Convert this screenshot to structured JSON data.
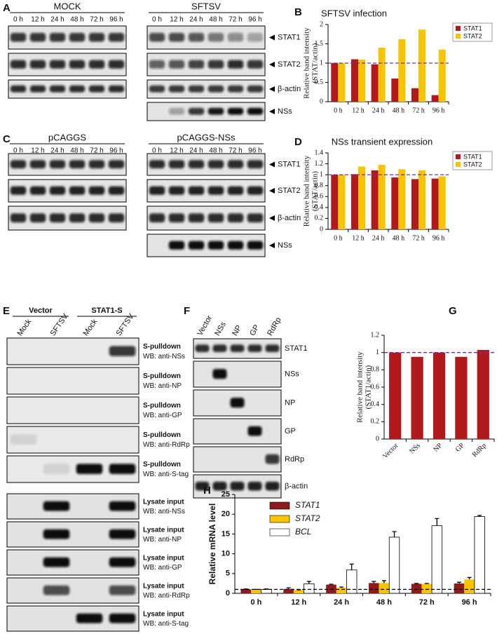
{
  "panels": {
    "A": {
      "label": "A",
      "groups": [
        {
          "title": "MOCK",
          "lanes": [
            "0 h",
            "12 h",
            "24 h",
            "48 h",
            "72 h",
            "96 h"
          ]
        },
        {
          "title": "SFTSV",
          "lanes": [
            "0 h",
            "12 h",
            "24 h",
            "48 h",
            "72 h",
            "96 h"
          ]
        }
      ],
      "rows": [
        "STAT1",
        "STAT2",
        "β-actin",
        "NSs"
      ]
    },
    "C": {
      "label": "C",
      "groups": [
        {
          "title": "pCAGGS",
          "lanes": [
            "0 h",
            "12 h",
            "24 h",
            "48 h",
            "72 h",
            "96 h"
          ]
        },
        {
          "title": "pCAGGS-NSs",
          "lanes": [
            "0 h",
            "12 h",
            "24 h",
            "48 h",
            "72 h",
            "96 h"
          ]
        }
      ],
      "rows": [
        "STAT1",
        "STAT2",
        "β-actin",
        "NSs"
      ]
    },
    "E": {
      "label": "E",
      "groups": [
        "Vector",
        "STAT1-S"
      ],
      "lanes": [
        "Mock",
        "SFTSV",
        "Mock",
        "SFTSV"
      ],
      "rows": [
        {
          "title": "S-pulldown",
          "probe": "WB: anti-NSs"
        },
        {
          "title": "S-pulldown",
          "probe": "WB: anti-NP"
        },
        {
          "title": "S-pulldown",
          "probe": "WB: anti-GP"
        },
        {
          "title": "S-pulldown",
          "probe": "WB: anti-RdRp"
        },
        {
          "title": "S-pulldown",
          "probe": "WB: anti-S-tag"
        },
        {
          "title": "Lysate input",
          "probe": "WB: anti-NSs"
        },
        {
          "title": "Lysate input",
          "probe": "WB: anti-NP"
        },
        {
          "title": "Lysate input",
          "probe": "WB: anti-GP"
        },
        {
          "title": "Lysate input",
          "probe": "WB: anti-RdRp"
        },
        {
          "title": "Lysate input",
          "probe": "WB: anti-S-tag"
        }
      ]
    },
    "F": {
      "label": "F",
      "lanes": [
        "Vector",
        "NSs",
        "NP",
        "GP",
        "RdRp"
      ],
      "rows": [
        "STAT1",
        "NSs",
        "NP",
        "GP",
        "RdRp",
        "β-actin"
      ]
    }
  },
  "chart_data": [
    {
      "type": "bar",
      "panel_label": "B",
      "title": "SFTSV infection",
      "y_label": [
        "Relative band intensity",
        "(STAT/actin)"
      ],
      "categories": [
        "0 h",
        "12 h",
        "24 h",
        "48 h",
        "72 h",
        "96 h"
      ],
      "series": [
        {
          "name": "STAT1",
          "color": "#b2191c",
          "values": [
            1,
            1.1,
            0.97,
            0.6,
            0.35,
            0.17
          ]
        },
        {
          "name": "STAT2",
          "color": "#f6c500",
          "values": [
            1,
            1.09,
            1.4,
            1.62,
            1.87,
            1.35
          ]
        }
      ],
      "ylim": [
        0,
        2
      ],
      "yticks": [
        0,
        0.5,
        1,
        1.5,
        2
      ],
      "reference_line": 1,
      "reference_color": "#7030a0",
      "legend": "top-right"
    },
    {
      "type": "bar",
      "panel_label": "D",
      "title": "NSs transient expression",
      "y_label": [
        "Relative band intensity",
        "(STAT/actin)"
      ],
      "categories": [
        "0 h",
        "12 h",
        "24 h",
        "48 h",
        "72 h",
        "96 h"
      ],
      "series": [
        {
          "name": "STAT1",
          "color": "#b2191c",
          "values": [
            1,
            1.01,
            1.08,
            0.95,
            0.92,
            0.93
          ]
        },
        {
          "name": "STAT2",
          "color": "#f6c500",
          "values": [
            1,
            1.15,
            1.18,
            1.1,
            1.08,
            0.97
          ]
        }
      ],
      "ylim": [
        0,
        1.4
      ],
      "yticks": [
        0,
        0.2,
        0.4,
        0.6,
        0.8,
        1,
        1.2,
        1.4
      ],
      "reference_line": 1,
      "reference_color": "#7030a0",
      "legend": "top-right"
    },
    {
      "type": "bar",
      "panel_label": "G",
      "y_label": [
        "Relative band intensity",
        "(STAT1/actin)"
      ],
      "categories": [
        "Vector",
        "NSs",
        "NP",
        "GP",
        "RdRp"
      ],
      "values": [
        1,
        0.95,
        1,
        0.95,
        1.03
      ],
      "color": "#b2191c",
      "ylim": [
        0,
        1.2
      ],
      "yticks": [
        0,
        0.2,
        0.4,
        0.6,
        0.8,
        1,
        1.2
      ],
      "reference_line": 1,
      "reference_color": "#7030a0"
    },
    {
      "type": "bar",
      "panel_label": "H",
      "y_label": [
        "Relative mRNA level"
      ],
      "categories": [
        "0 h",
        "12 h",
        "24 h",
        "48 h",
        "72 h",
        "96 h"
      ],
      "series": [
        {
          "name": "STAT1",
          "color": "#8e1b1b",
          "values": [
            1,
            1.1,
            2.2,
            2.6,
            2.4,
            2.5
          ],
          "errors": [
            0.1,
            0.3,
            0.1,
            0.4,
            0.1,
            0.3
          ]
        },
        {
          "name": "STAT2",
          "color": "#f6c500",
          "values": [
            0.9,
            0.8,
            1.4,
            2.6,
            2.4,
            3.5
          ],
          "errors": [
            0.1,
            0.1,
            0.2,
            0.6,
            0.1,
            0.5
          ]
        },
        {
          "name": "BCL",
          "color": "#ffffff",
          "values": [
            1,
            2.4,
            5.9,
            14.2,
            17.1,
            19.4
          ],
          "errors": [
            0.1,
            0.6,
            1.5,
            1.4,
            1.8,
            0.3
          ]
        }
      ],
      "ylim": [
        0,
        25
      ],
      "yticks": [
        0,
        5,
        10,
        15,
        20,
        25
      ],
      "reference_line": 1,
      "reference_color": "#000000",
      "legend": "top-left"
    }
  ]
}
